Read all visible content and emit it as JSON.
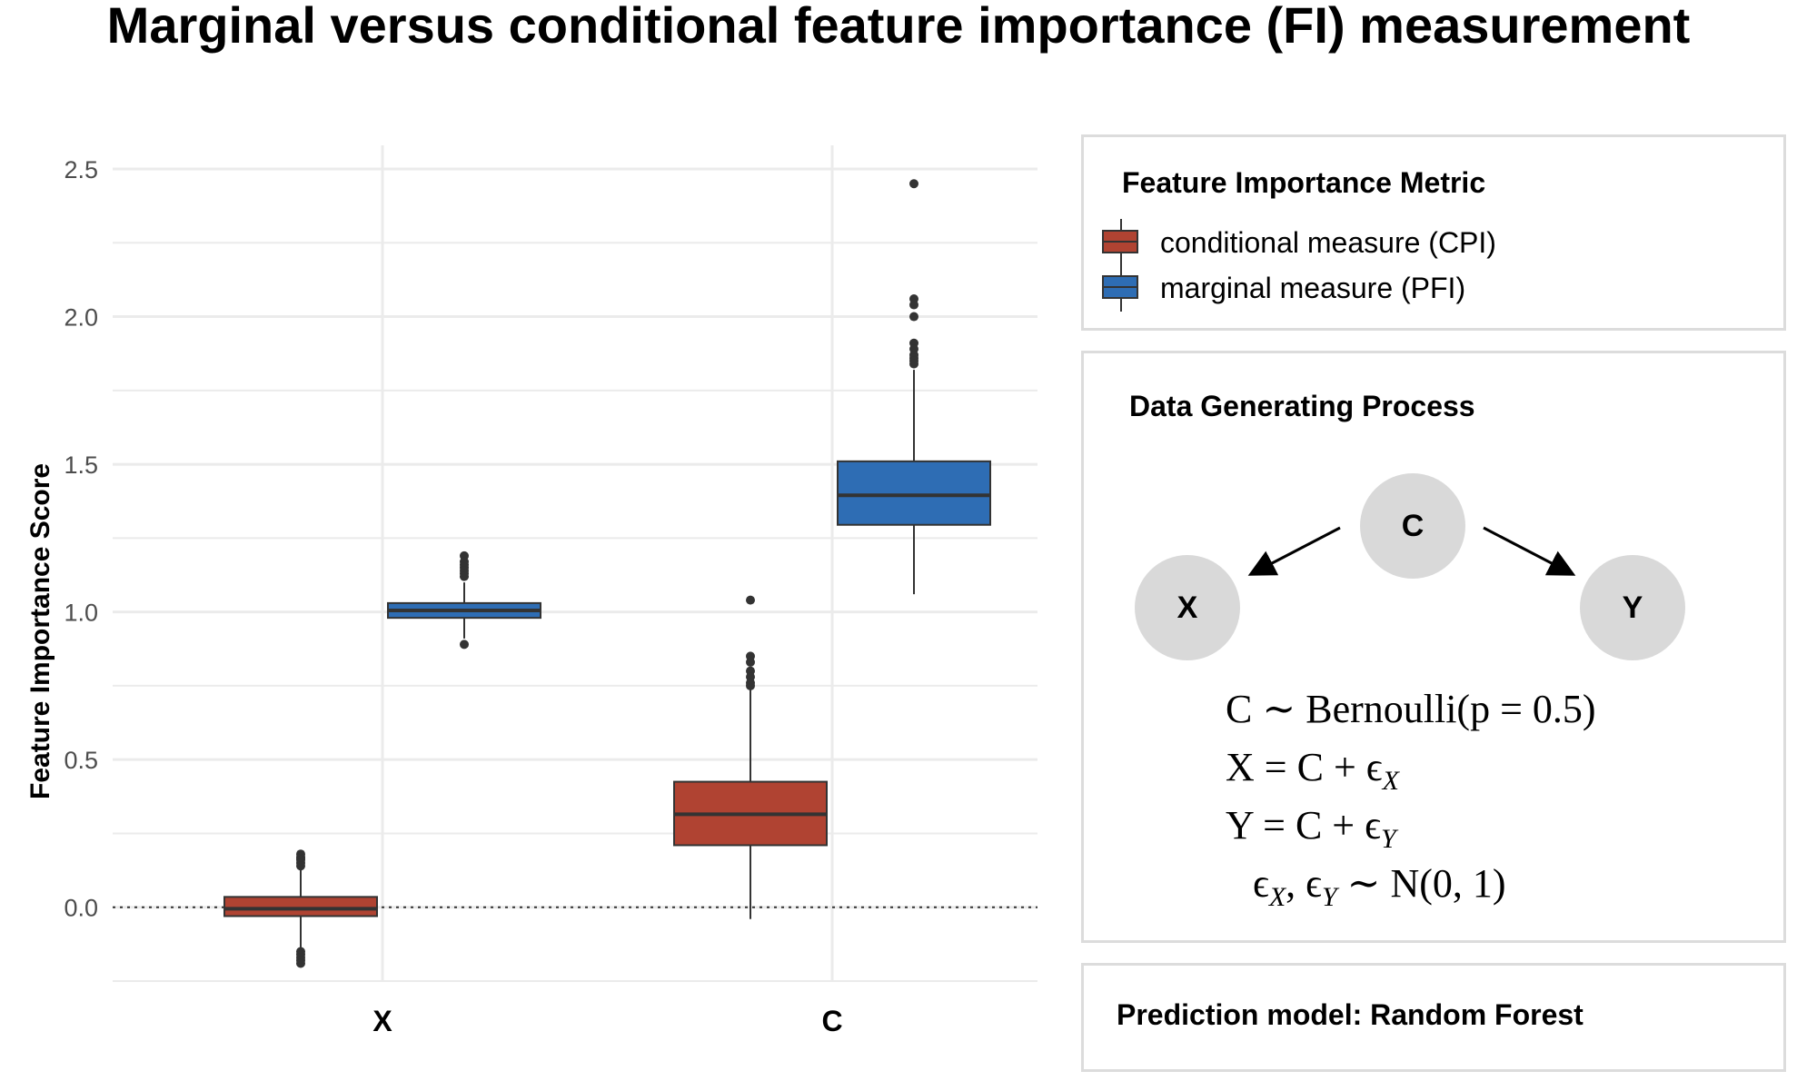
{
  "title": "Marginal versus conditional feature importance (FI) measurement",
  "colors": {
    "cpi": "#B04332",
    "pfi": "#2E6DB4",
    "grid": "#ebebeb",
    "outline": "#333333"
  },
  "chart_data": {
    "type": "boxplot",
    "ylabel": "Feature Importance Score",
    "xlabel": "",
    "categories": [
      "X",
      "C"
    ],
    "ylim": [
      -0.25,
      2.58
    ],
    "yticks": [
      0.0,
      0.5,
      1.0,
      1.5,
      2.0,
      2.5
    ],
    "ytick_labels": [
      "0.0",
      "0.5",
      "1.0",
      "1.5",
      "2.0",
      "2.5"
    ],
    "reference_line": {
      "y": 0.0,
      "style": "dotted"
    },
    "series": [
      {
        "name": "conditional measure (CPI)",
        "color": "#B04332",
        "boxes": [
          {
            "category": "X",
            "q1": -0.03,
            "median": -0.005,
            "q3": 0.035,
            "whisker_low": -0.14,
            "whisker_high": 0.13,
            "outliers": [
              0.18,
              0.17,
              0.165,
              0.16,
              0.15,
              0.14,
              -0.15,
              -0.16,
              -0.17,
              -0.18,
              -0.19
            ]
          },
          {
            "category": "C",
            "q1": 0.21,
            "median": 0.315,
            "q3": 0.425,
            "whisker_low": -0.04,
            "whisker_high": 0.74,
            "outliers": [
              1.04,
              0.85,
              0.83,
              0.8,
              0.78,
              0.76,
              0.75
            ]
          }
        ]
      },
      {
        "name": "marginal measure (PFI)",
        "color": "#2E6DB4",
        "boxes": [
          {
            "category": "X",
            "q1": 0.98,
            "median": 1.005,
            "q3": 1.03,
            "whisker_low": 0.91,
            "whisker_high": 1.1,
            "outliers": [
              1.19,
              1.17,
              1.16,
              1.15,
              1.14,
              1.13,
              1.12,
              0.89
            ]
          },
          {
            "category": "C",
            "q1": 1.295,
            "median": 1.395,
            "q3": 1.51,
            "whisker_low": 1.06,
            "whisker_high": 1.82,
            "outliers": [
              2.45,
              2.06,
              2.04,
              2.0,
              1.91,
              1.89,
              1.87,
              1.86,
              1.85,
              1.84
            ]
          }
        ]
      }
    ]
  },
  "legend": {
    "title": "Feature Importance Metric",
    "items": [
      {
        "label": "conditional measure (CPI)",
        "color": "#B04332"
      },
      {
        "label": "marginal measure (PFI)",
        "color": "#2E6DB4"
      }
    ]
  },
  "dgp": {
    "title": "Data Generating Process",
    "nodes": {
      "c": "C",
      "x": "X",
      "y": "Y"
    },
    "equations": [
      "C ∼ Bernoulli(p = 0.5)",
      "X = C + ϵ_X",
      "Y = C + ϵ_Y",
      "ϵ_X, ϵ_Y ∼ N(0, 1)"
    ]
  },
  "model": {
    "label": "Prediction model: Random Forest"
  }
}
